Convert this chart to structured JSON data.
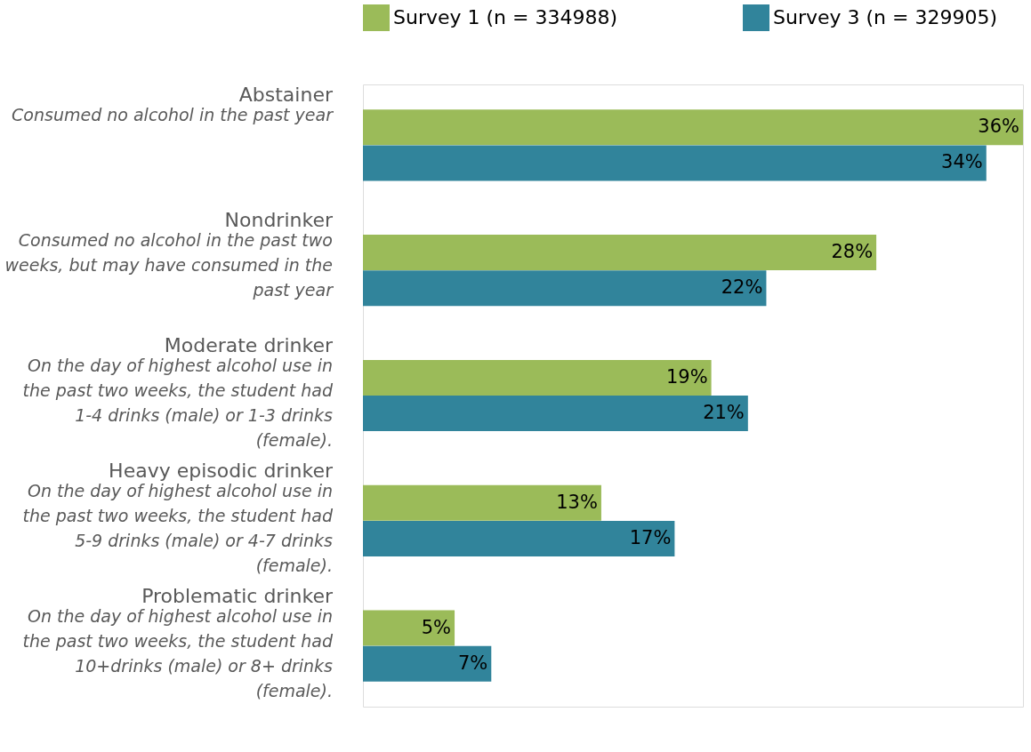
{
  "chart_data": {
    "type": "bar",
    "orientation": "horizontal",
    "legend": "top",
    "categories": [
      "Abstainer",
      "Nondrinker",
      "Moderate drinker",
      "Heavy episodic drinker",
      "Problematic drinker"
    ],
    "series": [
      {
        "name": "Survey 1 (n = 334988)",
        "color": "#9bbb59",
        "values": [
          36,
          28,
          19,
          13,
          5
        ],
        "value_labels": [
          "36%",
          "28%",
          "19%",
          "13%",
          "5%"
        ]
      },
      {
        "name": "Survey 3 (n = 329905)",
        "color": "#31849b",
        "values": [
          34,
          22,
          21,
          17,
          7
        ],
        "value_labels": [
          "34%",
          "22%",
          "21%",
          "17%",
          "7%"
        ]
      }
    ],
    "annotations": [
      "Consumed no alcohol in the past year",
      "Consumed no alcohol in the past two weeks, but may have consumed in the past year",
      "On the day of highest alcohol use in the past two weeks, the student had 1-4 drinks (male) or 1-3 drinks (female).",
      "On the day of highest alcohol use in the past two weeks, the student had 5-9 drinks (male) or 4-7 drinks (female).",
      "On the day of highest alcohol use in the past two weeks, the student had 10+drinks (male) or 8+ drinks (female)."
    ]
  }
}
